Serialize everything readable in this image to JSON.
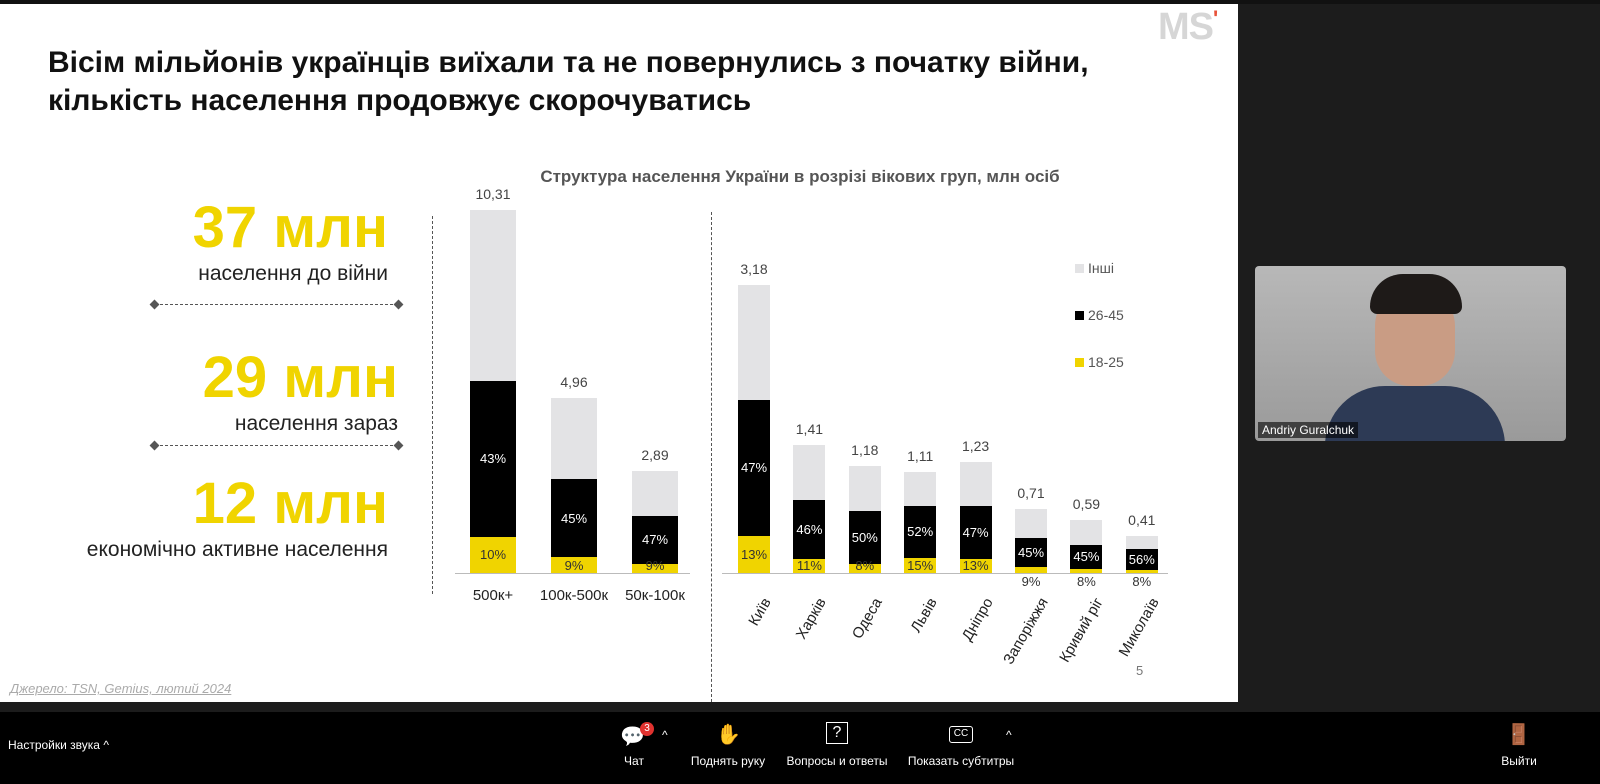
{
  "slide": {
    "logo": "MS",
    "title": "Вісім мільйонів українців виїхали та не повернулись з початку війни, кількість  населення продовжує скорочуватись",
    "stats": [
      {
        "value": "37 млн",
        "label": "населення до війни"
      },
      {
        "value": "29 млн",
        "label": "населення зараз"
      },
      {
        "value": "12 млн",
        "label": "економічно активне населення"
      }
    ],
    "source": "Джерело: TSN, Gemius, лютий 2024",
    "page_number": "5"
  },
  "chart_data": {
    "type": "bar",
    "stacked": true,
    "title": "Структура населення України в розрізі вікових груп, млн осіб",
    "legend": [
      "Інші",
      "26-45",
      "18-25"
    ],
    "legend_position": "right",
    "colors": {
      "Інші": "#e3e3e5",
      "26-45": "#000000",
      "18-25": "#f0d400"
    },
    "groups": [
      {
        "categories": [
          "500к+",
          "100к-500к",
          "50к-100к"
        ],
        "totals": [
          10.31,
          4.96,
          2.89
        ],
        "total_labels": [
          "10,31",
          "4,96",
          "2,89"
        ],
        "pct_18_25": [
          10,
          9,
          9
        ],
        "pct_26_45": [
          43,
          45,
          47
        ]
      },
      {
        "categories": [
          "Київ",
          "Харків",
          "Одеса",
          "Львів",
          "Дніпро",
          "Запоріжжя",
          "Кривий ріг",
          "Миколаїв"
        ],
        "totals": [
          3.18,
          1.41,
          1.18,
          1.11,
          1.23,
          0.71,
          0.59,
          0.41
        ],
        "total_labels": [
          "3,18",
          "1,41",
          "1,18",
          "1,11",
          "1,23",
          "0,71",
          "0,59",
          "0,41"
        ],
        "pct_18_25": [
          13,
          11,
          8,
          15,
          13,
          9,
          8,
          8
        ],
        "pct_26_45": [
          47,
          46,
          50,
          52,
          47,
          45,
          45,
          56
        ]
      }
    ]
  },
  "webcam": {
    "name": "Andriy Guralchuk"
  },
  "toolbar": {
    "audio_settings": "Настройки звука",
    "chat": "Чат",
    "chat_badge": "3",
    "raise_hand": "Поднять руку",
    "qa": "Вопросы и ответы",
    "captions": "Показать субтитры",
    "leave": "Выйти"
  }
}
